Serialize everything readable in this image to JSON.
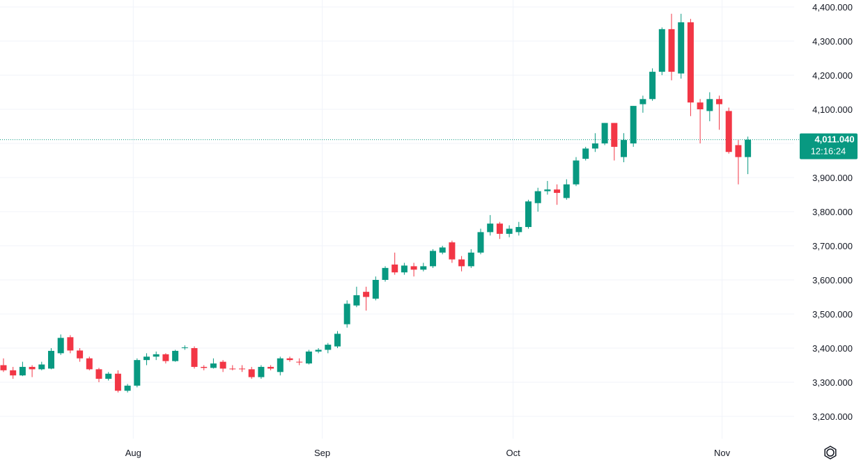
{
  "chart_data": {
    "type": "candlestick",
    "y_axis_ticks": [
      "4,400.000",
      "4,300.000",
      "4,200.000",
      "4,100.000",
      "4,000.000",
      "3,900.000",
      "3,800.000",
      "3,700.000",
      "3,600.000",
      "3,500.000",
      "3,400.000",
      "3,300.000",
      "3,200.000"
    ],
    "y_axis_values": [
      4400,
      4300,
      4200,
      4100,
      4000,
      3900,
      3800,
      3700,
      3600,
      3500,
      3400,
      3300,
      3200
    ],
    "ylim": [
      3130,
      4420
    ],
    "x_axis_ticks": [
      {
        "label": "Aug",
        "index": 13.6
      },
      {
        "label": "Sep",
        "index": 33.4
      },
      {
        "label": "Oct",
        "index": 53.4
      },
      {
        "label": "Nov",
        "index": 75.3
      }
    ],
    "last_price_label": "4,011.040",
    "countdown_label": "12:16:24",
    "last_price": 4011.04,
    "colors": {
      "up": "#089981",
      "down": "#f23645",
      "grid": "#f0f3fa",
      "price_line": "#089981"
    },
    "settings_icon": "gear-icon",
    "candles": [
      [
        3350,
        3370,
        3330,
        3335
      ],
      [
        3335,
        3345,
        3310,
        3320
      ],
      [
        3320,
        3360,
        3318,
        3345
      ],
      [
        3345,
        3350,
        3315,
        3338
      ],
      [
        3338,
        3360,
        3335,
        3352
      ],
      [
        3340,
        3400,
        3338,
        3392
      ],
      [
        3385,
        3440,
        3380,
        3430
      ],
      [
        3432,
        3438,
        3385,
        3393
      ],
      [
        3393,
        3400,
        3360,
        3370
      ],
      [
        3370,
        3375,
        3335,
        3338
      ],
      [
        3338,
        3342,
        3300,
        3310
      ],
      [
        3310,
        3330,
        3305,
        3325
      ],
      [
        3325,
        3335,
        3270,
        3275
      ],
      [
        3275,
        3295,
        3270,
        3290
      ],
      [
        3290,
        3370,
        3285,
        3365
      ],
      [
        3365,
        3385,
        3350,
        3375
      ],
      [
        3375,
        3390,
        3365,
        3382
      ],
      [
        3382,
        3385,
        3355,
        3362
      ],
      [
        3362,
        3395,
        3360,
        3392
      ],
      [
        3400,
        3408,
        3395,
        3402
      ],
      [
        3400,
        3405,
        3340,
        3345
      ],
      [
        3345,
        3350,
        3335,
        3342
      ],
      [
        3342,
        3370,
        3340,
        3355
      ],
      [
        3360,
        3365,
        3330,
        3340
      ],
      [
        3340,
        3350,
        3335,
        3338
      ],
      [
        3340,
        3350,
        3330,
        3338
      ],
      [
        3338,
        3345,
        3310,
        3315
      ],
      [
        3315,
        3350,
        3310,
        3345
      ],
      [
        3345,
        3350,
        3335,
        3340
      ],
      [
        3330,
        3375,
        3320,
        3370
      ],
      [
        3370,
        3375,
        3360,
        3365
      ],
      [
        3360,
        3370,
        3350,
        3358
      ],
      [
        3355,
        3395,
        3352,
        3390
      ],
      [
        3390,
        3400,
        3385,
        3395
      ],
      [
        3395,
        3415,
        3385,
        3410
      ],
      [
        3405,
        3450,
        3400,
        3442
      ],
      [
        3470,
        3540,
        3460,
        3530
      ],
      [
        3525,
        3580,
        3520,
        3555
      ],
      [
        3565,
        3580,
        3510,
        3550
      ],
      [
        3545,
        3610,
        3540,
        3600
      ],
      [
        3600,
        3640,
        3595,
        3635
      ],
      [
        3645,
        3680,
        3615,
        3622
      ],
      [
        3622,
        3650,
        3615,
        3642
      ],
      [
        3640,
        3650,
        3610,
        3630
      ],
      [
        3630,
        3650,
        3625,
        3640
      ],
      [
        3640,
        3690,
        3635,
        3685
      ],
      [
        3680,
        3700,
        3675,
        3695
      ],
      [
        3710,
        3715,
        3650,
        3660
      ],
      [
        3660,
        3670,
        3625,
        3640
      ],
      [
        3640,
        3690,
        3635,
        3680
      ],
      [
        3680,
        3750,
        3675,
        3740
      ],
      [
        3740,
        3790,
        3730,
        3765
      ],
      [
        3765,
        3770,
        3720,
        3735
      ],
      [
        3735,
        3760,
        3725,
        3750
      ],
      [
        3740,
        3770,
        3730,
        3755
      ],
      [
        3755,
        3835,
        3750,
        3830
      ],
      [
        3825,
        3870,
        3800,
        3860
      ],
      [
        3860,
        3890,
        3850,
        3865
      ],
      [
        3865,
        3880,
        3820,
        3855
      ],
      [
        3840,
        3895,
        3835,
        3880
      ],
      [
        3880,
        3960,
        3875,
        3950
      ],
      [
        3955,
        3990,
        3950,
        3985
      ],
      [
        3985,
        4030,
        3975,
        4000
      ],
      [
        4000,
        4060,
        3995,
        4060
      ],
      [
        4060,
        4060,
        3950,
        3990
      ],
      [
        3960,
        4030,
        3945,
        4010
      ],
      [
        4000,
        4110,
        3990,
        4110
      ],
      [
        4115,
        4140,
        4090,
        4130
      ],
      [
        4130,
        4220,
        4125,
        4210
      ],
      [
        4210,
        4340,
        4200,
        4335
      ],
      [
        4335,
        4380,
        4185,
        4210
      ],
      [
        4205,
        4380,
        4190,
        4355
      ],
      [
        4355,
        4365,
        4080,
        4120
      ],
      [
        4120,
        4130,
        4000,
        4100
      ],
      [
        4095,
        4150,
        4065,
        4130
      ],
      [
        4130,
        4140,
        4040,
        4115
      ],
      [
        4095,
        4105,
        3970,
        3975
      ],
      [
        3995,
        4010,
        3880,
        3960
      ],
      [
        3960,
        4020,
        3910,
        4011
      ]
    ]
  }
}
